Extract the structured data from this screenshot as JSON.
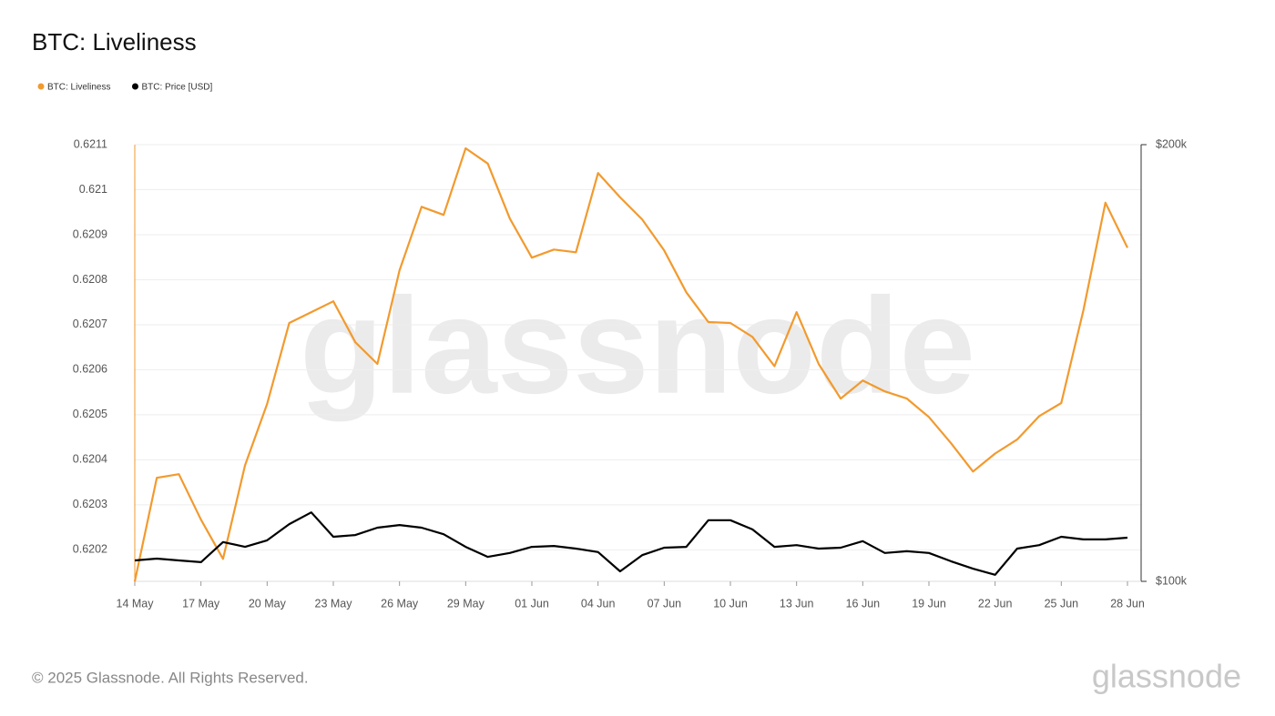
{
  "chart_data": {
    "type": "line",
    "title": "BTC: Liveliness",
    "categories": [
      "14 May",
      null,
      null,
      "17 May",
      null,
      null,
      "20 May",
      null,
      null,
      "23 May",
      null,
      null,
      "26 May",
      null,
      null,
      "29 May",
      null,
      null,
      "01 Jun",
      null,
      null,
      "04 Jun",
      null,
      null,
      "07 Jun",
      null,
      null,
      "10 Jun",
      null,
      null,
      "13 Jun",
      null,
      null,
      "16 Jun",
      null,
      null,
      "19 Jun",
      null,
      null,
      "22 Jun",
      null,
      null,
      "25 Jun",
      null,
      null,
      "28 Jun"
    ],
    "series": [
      {
        "name": "BTC: Liveliness",
        "color": "#f29a2e",
        "axis": "y",
        "values": [
          0.62013,
          0.62036,
          0.620368,
          0.620267,
          0.62018,
          0.620388,
          0.620524,
          0.620704,
          0.620728,
          0.620752,
          0.620661,
          0.620613,
          0.620821,
          0.620962,
          0.620944,
          0.621092,
          0.621058,
          0.620936,
          0.620849,
          0.620867,
          0.620861,
          0.621037,
          0.620983,
          0.620934,
          0.620865,
          0.620772,
          0.620706,
          0.620704,
          0.620673,
          0.620608,
          0.620728,
          0.620613,
          0.620536,
          0.620576,
          0.620552,
          0.620536,
          0.620495,
          0.620437,
          0.620374,
          0.620414,
          0.620445,
          0.620497,
          0.620526,
          0.620732,
          0.620971,
          0.620871
        ]
      },
      {
        "name": "BTC: Price [USD]",
        "color": "#000000",
        "axis": "y2",
        "values": [
          104800,
          105200,
          104800,
          104400,
          109000,
          107900,
          109400,
          113100,
          115800,
          110200,
          110600,
          112300,
          112900,
          112300,
          110800,
          107900,
          105600,
          106500,
          107900,
          108100,
          107500,
          106700,
          102300,
          106000,
          107700,
          107900,
          114000,
          114000,
          111900,
          107900,
          108300,
          107500,
          107700,
          109200,
          106500,
          106900,
          106500,
          104600,
          102900,
          101500,
          107500,
          108300,
          110200,
          109600,
          109600,
          110000
        ]
      }
    ],
    "ylim": [
      0.62013,
      0.6211
    ],
    "yticks": [
      0.6202,
      0.6203,
      0.6204,
      0.6205,
      0.6206,
      0.6207,
      0.6208,
      0.6209,
      0.621,
      0.6211
    ],
    "y2lim": [
      100000,
      200000
    ],
    "y2ticks": [
      {
        "value": 100000,
        "label": "$100k"
      },
      {
        "value": 200000,
        "label": "$200k"
      }
    ],
    "grid": true,
    "legend": "top-left",
    "watermark": "glassnode"
  },
  "footer": {
    "copyright": "© 2025 Glassnode. All Rights Reserved.",
    "logo": "glassnode"
  }
}
